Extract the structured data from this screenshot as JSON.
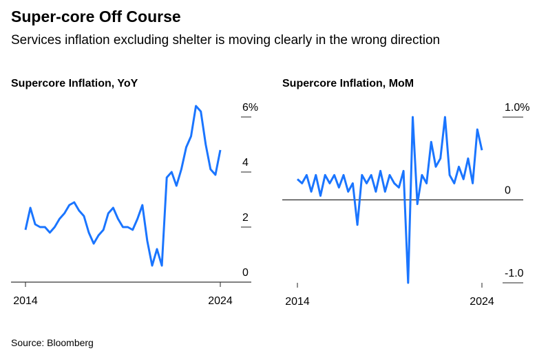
{
  "title": "Super-core Off Course",
  "subtitle": "Services inflation excluding shelter is moving clearly in the wrong direction",
  "source": "Source: Bloomberg",
  "chart_data": [
    {
      "type": "line",
      "title": "Supercore Inflation, YoY",
      "x": [
        2014,
        2014.25,
        2014.5,
        2014.75,
        2015,
        2015.25,
        2015.5,
        2015.75,
        2016,
        2016.25,
        2016.5,
        2016.75,
        2017,
        2017.25,
        2017.5,
        2017.75,
        2018,
        2018.25,
        2018.5,
        2018.75,
        2019,
        2019.25,
        2019.5,
        2019.75,
        2020,
        2020.25,
        2020.5,
        2020.75,
        2021,
        2021.25,
        2021.5,
        2021.75,
        2022,
        2022.25,
        2022.5,
        2022.75,
        2023,
        2023.25,
        2023.5,
        2023.75,
        2024
      ],
      "series": [
        {
          "name": "YoY",
          "color": "#1a75ff",
          "values": [
            1.9,
            2.7,
            2.1,
            2.0,
            2.0,
            1.8,
            2.0,
            2.3,
            2.5,
            2.8,
            2.9,
            2.6,
            2.4,
            1.8,
            1.4,
            1.7,
            1.9,
            2.5,
            2.7,
            2.3,
            2.0,
            2.0,
            1.9,
            2.3,
            2.8,
            1.5,
            0.6,
            1.2,
            0.6,
            3.8,
            4.0,
            3.5,
            4.1,
            4.9,
            5.3,
            6.4,
            6.2,
            5.0,
            4.1,
            3.9,
            4.8
          ]
        }
      ],
      "xlim": [
        2014,
        2024
      ],
      "xticks": [
        2014,
        2024
      ],
      "ylim": [
        0,
        6.5
      ],
      "yticks": [
        0,
        2,
        4,
        {
          "value": 6,
          "label": "6%"
        }
      ]
    },
    {
      "type": "line",
      "title": "Supercore Inflation, MoM",
      "x": [
        2014,
        2014.25,
        2014.5,
        2014.75,
        2015,
        2015.25,
        2015.5,
        2015.75,
        2016,
        2016.25,
        2016.5,
        2016.75,
        2017,
        2017.25,
        2017.5,
        2017.75,
        2018,
        2018.25,
        2018.5,
        2018.75,
        2019,
        2019.25,
        2019.5,
        2019.75,
        2020,
        2020.25,
        2020.5,
        2020.75,
        2021,
        2021.25,
        2021.5,
        2021.75,
        2022,
        2022.25,
        2022.5,
        2022.75,
        2023,
        2023.25,
        2023.5,
        2023.75,
        2024
      ],
      "series": [
        {
          "name": "MoM",
          "color": "#1a75ff",
          "values": [
            0.25,
            0.2,
            0.3,
            0.1,
            0.3,
            0.05,
            0.3,
            0.2,
            0.3,
            0.15,
            0.3,
            0.1,
            0.2,
            -0.3,
            0.3,
            0.2,
            0.3,
            0.1,
            0.35,
            0.1,
            0.3,
            0.2,
            0.15,
            0.35,
            -1.0,
            1.0,
            -0.05,
            0.3,
            0.2,
            0.7,
            0.4,
            0.5,
            1.0,
            0.3,
            0.2,
            0.4,
            0.25,
            0.5,
            0.2,
            0.85,
            0.6
          ]
        }
      ],
      "xlim": [
        2014,
        2024
      ],
      "xticks": [
        2014,
        2024
      ],
      "ylim": [
        -1,
        1.15
      ],
      "yticks": [
        {
          "value": -1,
          "label": "-1.0"
        },
        0,
        {
          "value": 1,
          "label": "1.0%"
        }
      ]
    }
  ]
}
